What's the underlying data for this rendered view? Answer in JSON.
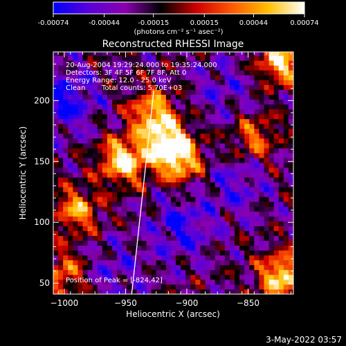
{
  "colorbar": {
    "ticks": [
      "-0.00074",
      "-0.00044",
      "-0.00015",
      "0.00015",
      "0.00044",
      "0.00074"
    ],
    "unit_label": "(photons cm⁻² s⁻¹ asec⁻²)",
    "vmin": -0.00074,
    "vmax": 0.00074,
    "colormap": [
      "#0000ff",
      "#5a00d8",
      "#8a00b0",
      "#000000",
      "#d00000",
      "#ff5a00",
      "#ffc000",
      "#ffffff"
    ]
  },
  "chart_data": {
    "type": "heatmap",
    "title": "Reconstructed RHESSI Image",
    "xlabel": "Heliocentric X (arcsec)",
    "ylabel": "Heliocentric Y (arcsec)",
    "xlim": [
      -1009,
      -813
    ],
    "ylim": [
      41,
      240
    ],
    "xticks": [
      -1000,
      -950,
      -900,
      -850
    ],
    "yticks": [
      50,
      100,
      150,
      200
    ],
    "xtick_labels": [
      "−1000",
      "−950",
      "−900",
      "−850"
    ],
    "ytick_labels": [
      "50",
      "100",
      "150",
      "200"
    ],
    "limb_line": [
      [
        -945,
        41
      ],
      [
        -927,
        208
      ]
    ],
    "hot_spots": [
      {
        "x": -952,
        "y": 151,
        "level": 1.0
      },
      {
        "x": -917,
        "y": 165,
        "level": 0.95
      },
      {
        "x": -928,
        "y": 190,
        "level": 0.8
      },
      {
        "x": -905,
        "y": 150,
        "level": 0.75
      },
      {
        "x": -822,
        "y": 56,
        "level": 0.95
      },
      {
        "x": -823,
        "y": 232,
        "level": 0.9
      },
      {
        "x": -990,
        "y": 110,
        "level": 0.7
      },
      {
        "x": -1000,
        "y": 58,
        "level": 0.6
      },
      {
        "x": -845,
        "y": 170,
        "level": 0.55
      }
    ],
    "cold_spots": [
      {
        "x": -1000,
        "y": 200,
        "level": 0.95
      },
      {
        "x": -905,
        "y": 95,
        "level": 0.8
      },
      {
        "x": -860,
        "y": 130,
        "level": 0.6
      },
      {
        "x": -960,
        "y": 60,
        "level": 0.5
      },
      {
        "x": -870,
        "y": 210,
        "level": 0.5
      }
    ],
    "annotations": [
      "20-Aug-2004 19:29:24.000 to 19:35:24.000",
      "Detectors: 3F 4F 5F 6F 7F 8F, Att 0",
      "Energy Range: 12.0 - 25.0 keV",
      "Clean",
      "Total counts: 5.70E+03"
    ],
    "peak_label": "Position of Peak = [-824,42]"
  },
  "footer": {
    "timestamp": "3-May-2022 03:57"
  }
}
